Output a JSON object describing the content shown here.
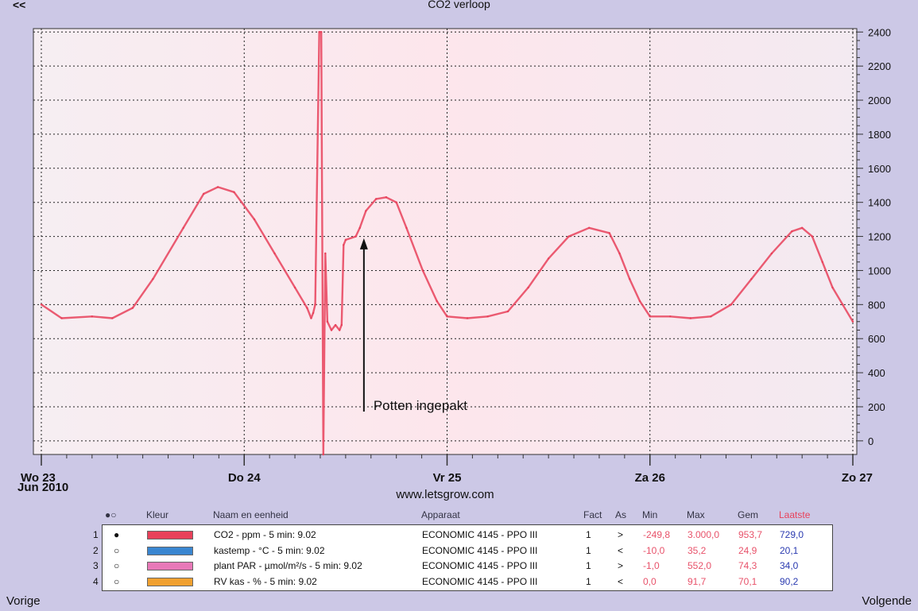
{
  "header": {
    "prev_arrows": "<<",
    "title": "CO2 verloop"
  },
  "footer": {
    "date_line1": "Jun 2010",
    "site": "www.letsgrow.com",
    "prev": "Vorige",
    "next": "Volgende"
  },
  "annotation": {
    "text": "Potten ingepakt"
  },
  "colors": {
    "line": "#e8415a",
    "grid": "#222222",
    "plot_bg": "#fbe9ef",
    "page_bg": "#ccc8e6"
  },
  "chart_data": {
    "type": "line",
    "title": "CO2 verloop",
    "x_ticks": [
      "Wo 23",
      "Do 24",
      "Vr 25",
      "Za 26",
      "Zo 27"
    ],
    "x_range_days": [
      0,
      4
    ],
    "y_ticks": [
      "0",
      "200",
      "400",
      "600",
      "800",
      "1000",
      "1200",
      "1400",
      "1600",
      "1800",
      "2000",
      "2200",
      "2400"
    ],
    "ylim": [
      -80,
      2420
    ],
    "grid": true,
    "y_axis_side": "right",
    "annotation": {
      "text": "Potten ingepakt",
      "x": 1.59,
      "y": 1180
    },
    "series": [
      {
        "name": "CO2 - ppm - 5 min: 9.02",
        "color": "#e8415a",
        "x": [
          0,
          0.1,
          0.25,
          0.35,
          0.45,
          0.55,
          0.7,
          0.8,
          0.87,
          0.95,
          1.05,
          1.15,
          1.25,
          1.31,
          1.33,
          1.34,
          1.35,
          1.37,
          1.38,
          1.39,
          1.4,
          1.41,
          1.43,
          1.45,
          1.47,
          1.48,
          1.49,
          1.5,
          1.55,
          1.57,
          1.6,
          1.65,
          1.7,
          1.75,
          1.8,
          1.88,
          1.95,
          2.0,
          2.1,
          2.2,
          2.3,
          2.4,
          2.5,
          2.6,
          2.7,
          2.8,
          2.85,
          2.9,
          2.95,
          3.0,
          3.1,
          3.2,
          3.3,
          3.4,
          3.5,
          3.6,
          3.7,
          3.75,
          3.8,
          3.85,
          3.9,
          3.95,
          4.0
        ],
        "y": [
          800,
          720,
          730,
          720,
          780,
          950,
          1250,
          1450,
          1490,
          1460,
          1300,
          1100,
          900,
          780,
          720,
          750,
          800,
          2400,
          2400,
          -80,
          1100,
          700,
          650,
          680,
          650,
          680,
          1150,
          1180,
          1200,
          1250,
          1350,
          1420,
          1430,
          1400,
          1250,
          1000,
          820,
          730,
          720,
          730,
          760,
          900,
          1070,
          1200,
          1250,
          1220,
          1100,
          950,
          820,
          730,
          730,
          720,
          730,
          800,
          950,
          1100,
          1230,
          1250,
          1200,
          1050,
          900,
          800,
          700
        ]
      }
    ],
    "legend": {
      "columns": [
        "●○",
        "Kleur",
        "Naam en eenheid",
        "Apparaat",
        "Fact",
        "As",
        "Min",
        "Max",
        "Gem",
        "Laatste"
      ],
      "rows": [
        {
          "num": "1",
          "mark": "●",
          "color": "#e8415a",
          "name": "CO2 - ppm - 5 min: 9.02",
          "device": "ECONOMIC 4145 - PPO III",
          "fact": "1",
          "axis": ">",
          "min": "-249,8",
          "max": "3.000,0",
          "avg": "953,7",
          "last": "729,0"
        },
        {
          "num": "2",
          "mark": "○",
          "color": "#3a86d0",
          "name": "kastemp - °C - 5 min: 9.02",
          "device": "ECONOMIC 4145 - PPO III",
          "fact": "1",
          "axis": "<",
          "min": "-10,0",
          "max": "35,2",
          "avg": "24,9",
          "last": "20,1"
        },
        {
          "num": "3",
          "mark": "○",
          "color": "#e879b8",
          "name": "plant PAR - µmol/m²/s - 5 min: 9.02",
          "device": "ECONOMIC 4145 - PPO III",
          "fact": "1",
          "axis": ">",
          "min": "-1,0",
          "max": "552,0",
          "avg": "74,3",
          "last": "34,0"
        },
        {
          "num": "4",
          "mark": "○",
          "color": "#f0a030",
          "name": "RV kas - % - 5 min: 9.02",
          "device": "ECONOMIC 4145 - PPO III",
          "fact": "1",
          "axis": "<",
          "min": "0,0",
          "max": "91,7",
          "avg": "70,1",
          "last": "90,2"
        }
      ]
    }
  }
}
